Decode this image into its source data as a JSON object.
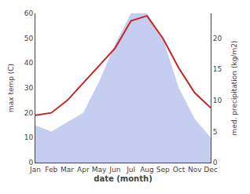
{
  "chart_data": {
    "type": "line",
    "categories": [
      "Jan",
      "Feb",
      "Mar",
      "Apr",
      "May",
      "Jun",
      "Jul",
      "Aug",
      "Sep",
      "Oct",
      "Nov",
      "Dec"
    ],
    "series": [
      {
        "type": "line",
        "color": "#cc2222",
        "values": [
          19,
          20,
          25,
          32,
          39,
          46,
          57,
          59,
          50,
          38,
          28,
          22
        ]
      },
      {
        "type": "area",
        "color": "#c5cdf0",
        "axis": "y2",
        "values": [
          6,
          5,
          6.5,
          8,
          13,
          19,
          24,
          24,
          20,
          12,
          7,
          4
        ]
      }
    ],
    "xlabel": "date (month)",
    "ylabel": "max temp (C)",
    "y2label": "med. precipitation (kg/m2)",
    "ylim": [
      0,
      60
    ],
    "yticks": [
      0,
      10,
      20,
      30,
      40,
      50,
      60
    ],
    "y2lim": [
      0,
      24
    ],
    "y2ticks": [
      0,
      5,
      10,
      15,
      20
    ],
    "grid": false
  }
}
